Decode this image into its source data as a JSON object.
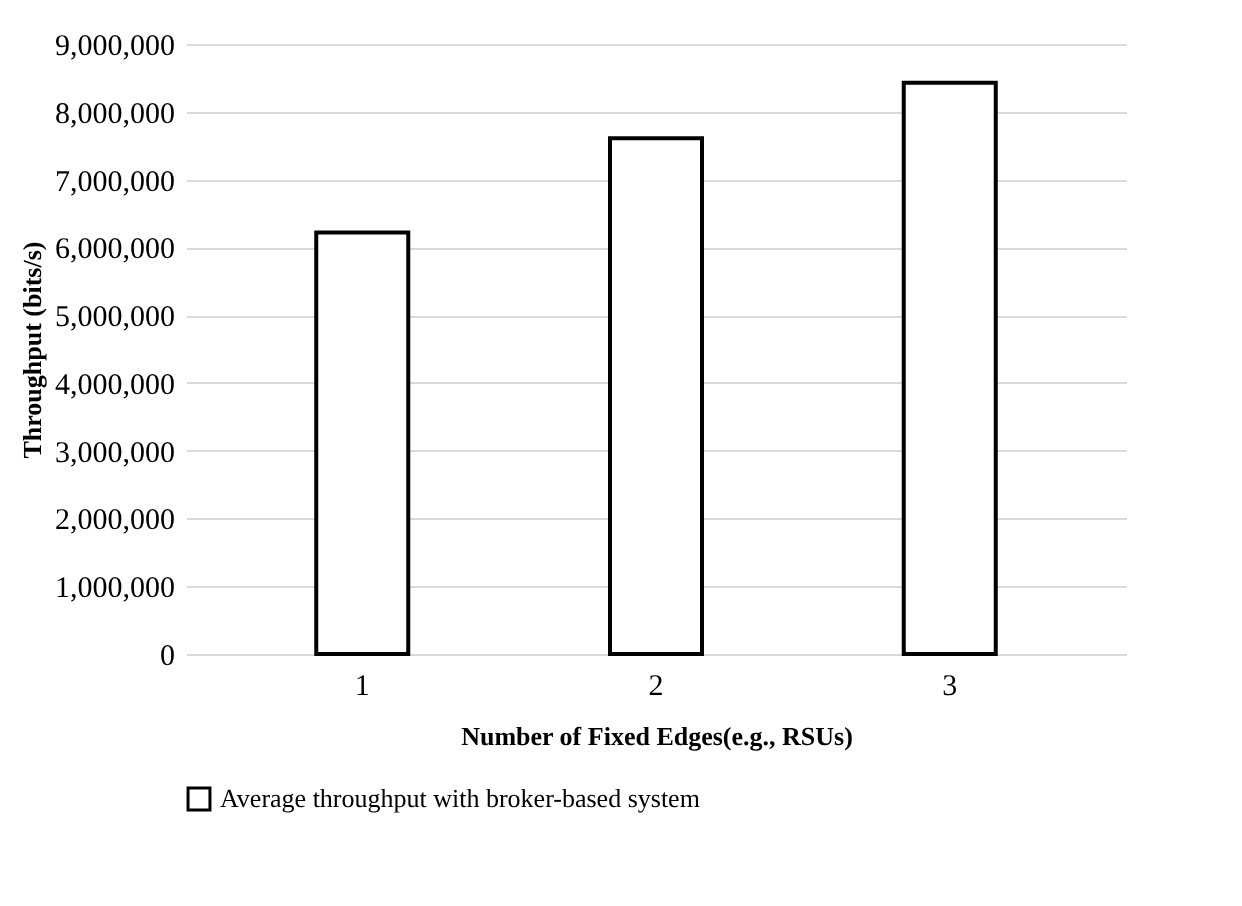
{
  "chart_data": {
    "type": "bar",
    "xlabel": "Number of Fixed Edges(e.g., RSUs)",
    "ylabel": "Throughput (bits/s)",
    "categories": [
      "1",
      "2",
      "3"
    ],
    "series": [
      {
        "name": "Average throughput with broker-based system",
        "color": "#ffffff",
        "values": [
          6220000,
          7610000,
          8430000
        ]
      }
    ],
    "ylim": [
      0,
      9000000
    ],
    "yticks": [
      {
        "value": 0,
        "label": "0"
      },
      {
        "value": 1000000,
        "label": "1,000,000"
      },
      {
        "value": 2000000,
        "label": "2,000,000"
      },
      {
        "value": 3000000,
        "label": "3,000,000"
      },
      {
        "value": 4000000,
        "label": "4,000,000"
      },
      {
        "value": 5000000,
        "label": "5,000,000"
      },
      {
        "value": 6000000,
        "label": "6,000,000"
      },
      {
        "value": 7000000,
        "label": "7,000,000"
      },
      {
        "value": 8000000,
        "label": "8,000,000"
      },
      {
        "value": 9000000,
        "label": "9,000,000"
      }
    ],
    "grid": "y",
    "legend": "bottom"
  }
}
